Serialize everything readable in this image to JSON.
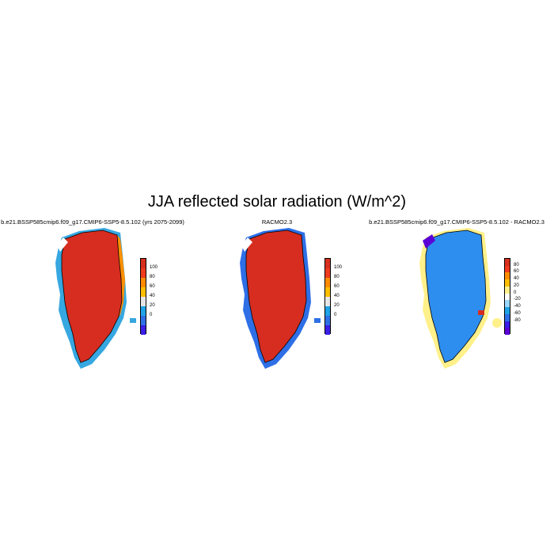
{
  "title": "JJA reflected solar radiation (W/m^2)",
  "panels": [
    {
      "id": "model",
      "title": "b.e21.BSSP585cmip6.f09_g17.CMIP6-SSP5-8.5.102 (yrs 2075-2099)",
      "colorbar": {
        "labels": [
          "100",
          "80",
          "60",
          "40",
          "20",
          "0"
        ],
        "colors": [
          "#d7301f",
          "#f03b20",
          "#ff8c00",
          "#ffbf00",
          "#e6e6e6",
          "#1fa3e6",
          "#2e6fe6",
          "#3a1fe6"
        ]
      }
    },
    {
      "id": "observation",
      "title": "RACMO2.3",
      "colorbar": {
        "labels": [
          "100",
          "80",
          "60",
          "40",
          "20",
          "0"
        ],
        "colors": [
          "#d7301f",
          "#f03b20",
          "#ff8c00",
          "#ffbf00",
          "#e6e6e6",
          "#1fa3e6",
          "#2e6fe6",
          "#3a1fe6"
        ]
      }
    },
    {
      "id": "difference",
      "title": "b.e21.BSSP585cmip6.f09_g17.CMIP6-SSP5-8.5.102 - RACMO2.3",
      "colorbar": {
        "labels": [
          "80",
          "60",
          "40",
          "20",
          "0",
          "-20",
          "-40",
          "-60",
          "-80"
        ],
        "colors": [
          "#d7301f",
          "#f03b20",
          "#ff8c00",
          "#ffbf00",
          "#fff08a",
          "#ffffff",
          "#9ad7ff",
          "#1fa3e6",
          "#2e6fe6",
          "#3a1fe6",
          "#5a00d6"
        ]
      }
    }
  ]
}
